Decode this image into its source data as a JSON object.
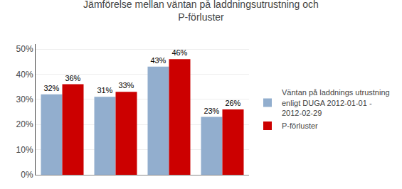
{
  "chart_data": {
    "type": "bar",
    "title": "Jämförelse mellan väntan på laddningsutrustning och\nP-förluster",
    "categories": [
      null,
      null,
      null,
      null
    ],
    "series": [
      {
        "name": "Väntan på laddnings utrustning\nenligt DUGA 2012-01-01 -\n2012-02-29",
        "color": "#92AECE",
        "values": [
          0.32,
          0.31,
          0.43,
          0.23
        ],
        "value_labels": [
          "32%",
          "31%",
          "43%",
          "23%"
        ]
      },
      {
        "name": "P-förluster",
        "color": "#CC0000",
        "values": [
          0.36,
          0.33,
          0.46,
          0.26
        ],
        "value_labels": [
          "36%",
          "33%",
          "46%",
          "26%"
        ]
      }
    ],
    "ylim": [
      0,
      0.52
    ],
    "yticks": [
      {
        "value": 0.0,
        "label": "0%"
      },
      {
        "value": 0.1,
        "label": "10%"
      },
      {
        "value": 0.2,
        "label": "20%"
      },
      {
        "value": 0.3,
        "label": "30%"
      },
      {
        "value": 0.4,
        "label": "40%"
      },
      {
        "value": 0.5,
        "label": "50%"
      }
    ],
    "grid": true,
    "legend": "right",
    "data_labels": true,
    "tick_labels": "y"
  }
}
